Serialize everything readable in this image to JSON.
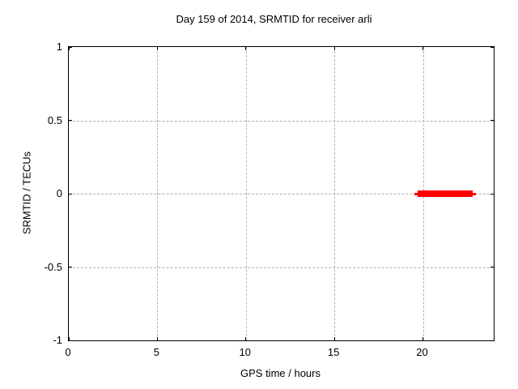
{
  "chart_data": {
    "type": "line",
    "title": "Day 159 of 2014, SRMTID for receiver arli",
    "xlabel": "GPS time / hours",
    "ylabel": "SRMTID / TECUs",
    "xlim": [
      0,
      24
    ],
    "ylim": [
      -1,
      1
    ],
    "xticks": [
      0,
      5,
      10,
      15,
      20
    ],
    "yticks": [
      -1,
      -0.5,
      0,
      0.5,
      1
    ],
    "grid": true,
    "legend_position": "none",
    "colors": {
      "series": "#ff0000",
      "grid": "#b3b3b3",
      "axis": "#000000",
      "background": "#ffffff"
    },
    "series": [
      {
        "name": "SRMTID",
        "color": "#ff0000",
        "shape": "horizontal-segment",
        "y": 0,
        "x_start": 19.5,
        "x_end": 23.0,
        "thick_x_start": 19.7,
        "thick_x_end": 22.8
      }
    ]
  }
}
